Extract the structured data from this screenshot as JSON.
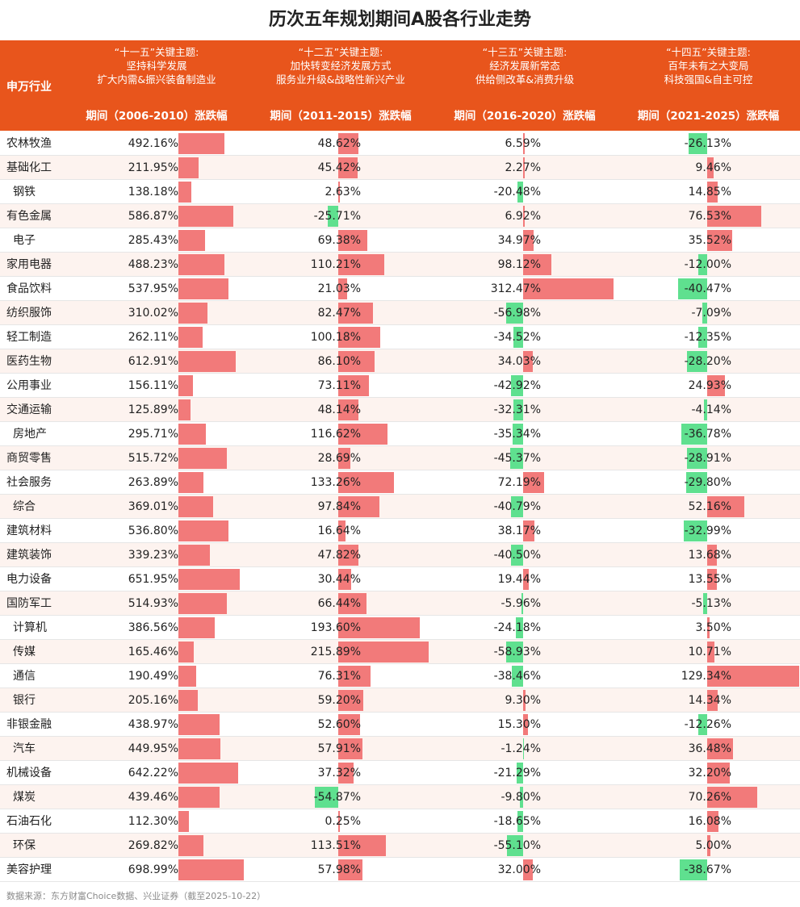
{
  "title": "历次五年规划期间A股各行业走势",
  "header": {
    "industry_label": "申万行业",
    "periods": [
      {
        "theme": [
          "“十一五”关键主题:",
          "坚持科学发展",
          "扩大内需&振兴装备制造业"
        ],
        "label": "期间（2006-2010）涨跌幅"
      },
      {
        "theme": [
          "“十二五”关键主题:",
          "加快转变经济发展方式",
          "服务业升级&战略性新兴产业"
        ],
        "label": "期间（2011-2015）涨跌幅"
      },
      {
        "theme": [
          "“十三五”关键主题:",
          "经济发展新常态",
          "供给侧改革&消费升级"
        ],
        "label": "期间（2016-2020）涨跌幅"
      },
      {
        "theme": [
          "“十四五”关键主题:",
          "百年未有之大变局",
          "科技强国&自主可控"
        ],
        "label": "期间（2021-2025）涨跌幅"
      }
    ]
  },
  "source": "数据来源：东方财富Choice数据、兴业证券（截至2025-10-22）",
  "colors": {
    "header": "#e8551c",
    "positive": "#f27a7a",
    "negative": "#5fe08f"
  },
  "chart_data": {
    "type": "table",
    "title": "历次五年规划期间A股各行业走势",
    "columns": [
      "期间（2006-2010）涨跌幅",
      "期间（2011-2015）涨跌幅",
      "期间（2016-2020）涨跌幅",
      "期间（2021-2025）涨跌幅"
    ],
    "unit": "%",
    "rows": [
      {
        "industry": "农林牧渔",
        "values": [
          492.16,
          48.62,
          6.59,
          -26.13
        ]
      },
      {
        "industry": "基础化工",
        "values": [
          211.95,
          45.42,
          2.27,
          9.46
        ]
      },
      {
        "industry": "钢铁",
        "values": [
          138.18,
          2.63,
          -20.48,
          14.85
        ]
      },
      {
        "industry": "有色金属",
        "values": [
          586.87,
          -25.71,
          6.92,
          76.53
        ]
      },
      {
        "industry": "电子",
        "values": [
          285.43,
          69.38,
          34.97,
          35.52
        ]
      },
      {
        "industry": "家用电器",
        "values": [
          488.23,
          110.21,
          98.12,
          -12.0
        ]
      },
      {
        "industry": "食品饮料",
        "values": [
          537.95,
          21.03,
          312.47,
          -40.47
        ]
      },
      {
        "industry": "纺织服饰",
        "values": [
          310.02,
          82.47,
          -56.98,
          -7.09
        ]
      },
      {
        "industry": "轻工制造",
        "values": [
          262.11,
          100.18,
          -34.52,
          -12.35
        ]
      },
      {
        "industry": "医药生物",
        "values": [
          612.91,
          86.1,
          34.03,
          -28.2
        ]
      },
      {
        "industry": "公用事业",
        "values": [
          156.11,
          73.11,
          -42.92,
          24.93
        ]
      },
      {
        "industry": "交通运输",
        "values": [
          125.89,
          48.14,
          -32.31,
          -4.14
        ]
      },
      {
        "industry": "房地产",
        "values": [
          295.71,
          116.62,
          -35.34,
          -36.78
        ]
      },
      {
        "industry": "商贸零售",
        "values": [
          515.72,
          28.69,
          -45.37,
          -28.91
        ]
      },
      {
        "industry": "社会服务",
        "values": [
          263.89,
          133.26,
          72.19,
          -29.8
        ]
      },
      {
        "industry": "综合",
        "values": [
          369.01,
          97.84,
          -40.79,
          52.16
        ]
      },
      {
        "industry": "建筑材料",
        "values": [
          536.8,
          16.64,
          38.17,
          -32.99
        ]
      },
      {
        "industry": "建筑装饰",
        "values": [
          339.23,
          47.82,
          -40.5,
          13.68
        ]
      },
      {
        "industry": "电力设备",
        "values": [
          651.95,
          30.44,
          19.44,
          13.55
        ]
      },
      {
        "industry": "国防军工",
        "values": [
          514.93,
          66.44,
          -5.96,
          -5.13
        ]
      },
      {
        "industry": "计算机",
        "values": [
          386.56,
          193.6,
          -24.18,
          3.5
        ]
      },
      {
        "industry": "传媒",
        "values": [
          165.46,
          215.89,
          -58.93,
          10.71
        ]
      },
      {
        "industry": "通信",
        "values": [
          190.49,
          76.31,
          -38.46,
          129.34
        ]
      },
      {
        "industry": "银行",
        "values": [
          205.16,
          59.2,
          9.3,
          14.34
        ]
      },
      {
        "industry": "非银金融",
        "values": [
          438.97,
          52.6,
          15.3,
          -12.26
        ]
      },
      {
        "industry": "汽车",
        "values": [
          449.95,
          57.91,
          -1.24,
          36.48
        ]
      },
      {
        "industry": "机械设备",
        "values": [
          642.22,
          37.32,
          -21.29,
          32.2
        ]
      },
      {
        "industry": "煤炭",
        "values": [
          439.46,
          -54.87,
          -9.8,
          70.26
        ]
      },
      {
        "industry": "石油石化",
        "values": [
          112.3,
          0.25,
          -18.65,
          16.08
        ]
      },
      {
        "industry": "环保",
        "values": [
          269.82,
          113.51,
          -55.1,
          5.0
        ]
      },
      {
        "industry": "美容护理",
        "values": [
          698.99,
          57.98,
          32.0,
          -38.67
        ]
      }
    ]
  }
}
